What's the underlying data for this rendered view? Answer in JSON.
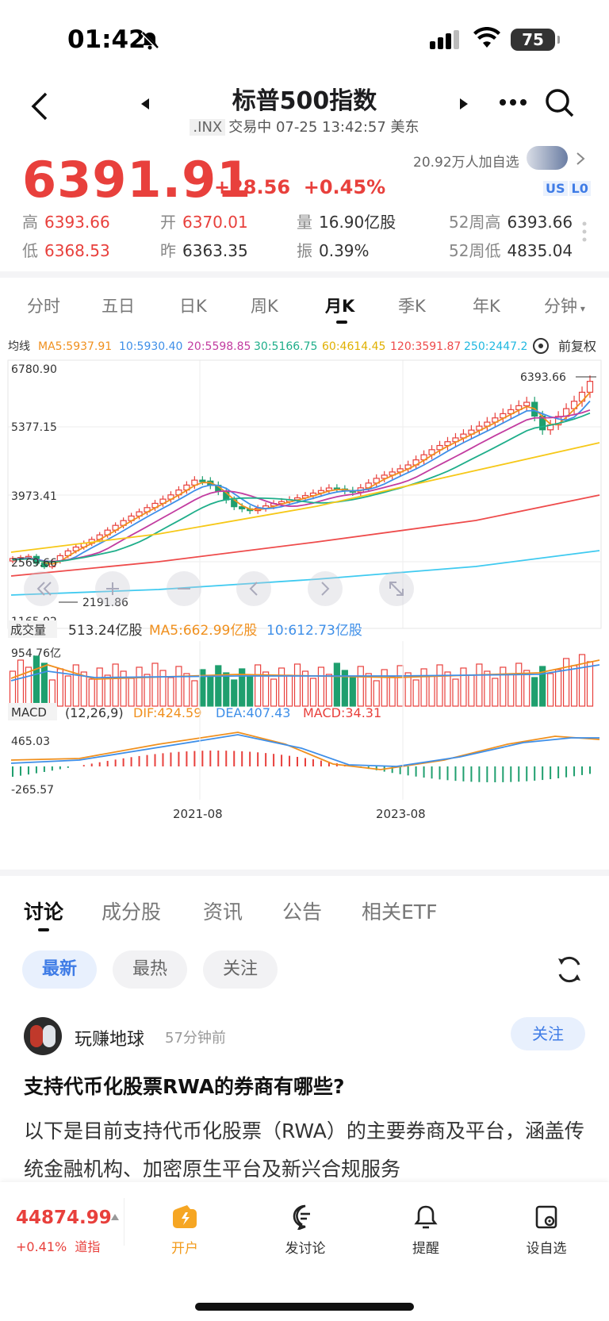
{
  "status": {
    "time": "01:42",
    "battery": "75"
  },
  "header": {
    "title": "标普500指数",
    "code": ".INX",
    "status": "交易中 07-25 13:42:57 美东"
  },
  "quote": {
    "price": "6391.91",
    "change": "+28.56",
    "change_pct": "+0.45%",
    "follows": "20.92万人加自选",
    "badge_us": "US",
    "badge_l0": "L0"
  },
  "stats": [
    {
      "label": "高",
      "value": "6393.66"
    },
    {
      "label": "开",
      "value": "6370.01"
    },
    {
      "label": "量",
      "value": "16.90亿股"
    },
    {
      "label": "52周高",
      "value": "6393.66"
    },
    {
      "label": "低",
      "value": "6368.53"
    },
    {
      "label": "昨",
      "value": "6363.35"
    },
    {
      "label": "振",
      "value": "0.39%"
    },
    {
      "label": "52周低",
      "value": "4835.04"
    }
  ],
  "chart_tabs": [
    "分时",
    "五日",
    "日K",
    "周K",
    "月K",
    "季K",
    "年K",
    "分钟"
  ],
  "active_tab": "月K",
  "ma_legend": {
    "title": "均线",
    "ma5": "MA5:5937.91",
    "ma10": "10:5930.40",
    "ma20": "20:5598.85",
    "ma30": "30:5166.75",
    "ma60": "60:4614.45",
    "ma120": "120:3591.87",
    "ma250": "250:2447.27",
    "adjust": "前复权"
  },
  "vol_legend": {
    "title": "成交量",
    "value": "513.24亿股",
    "ma5": "MA5:662.99亿股",
    "ma10": "10:612.73亿股",
    "max_label": "954.76亿"
  },
  "macd_legend": {
    "title": "MACD",
    "params": "(12,26,9)",
    "dif": "DIF:424.59",
    "dea": "DEA:407.43",
    "macd": "MACD:34.31",
    "top": "465.03",
    "bottom": "-265.57"
  },
  "chart_data": {
    "type": "candlestick",
    "y_ticks": [
      "6780.90",
      "5377.15",
      "3973.41",
      "2569.66",
      "1165.92"
    ],
    "ylim": [
      1165.92,
      6780.9
    ],
    "x_labels": [
      "2021-08",
      "2023-08"
    ],
    "annotations": {
      "high": "6393.66",
      "low": "2191.86"
    },
    "colors": {
      "up": "#e8403c",
      "down": "#1f9f6e",
      "ma5": "#f0901e",
      "ma10": "#3f8fe8",
      "ma20": "#c23ca0",
      "ma30": "#1fae8a",
      "ma60": "#f6c818",
      "ma120": "#ee4b4b",
      "ma250": "#3fcaf0"
    }
  },
  "discuss_tabs": [
    "讨论",
    "成分股",
    "资讯",
    "公告",
    "相关ETF"
  ],
  "filters": [
    "最新",
    "最热",
    "关注"
  ],
  "post": {
    "user": "玩赚地球",
    "time": "57分钟前",
    "follow": "关注",
    "title": "支持代币化股票RWA的券商有哪些?",
    "body": "以下是目前支持代币化股票（RWA）的主要券商及平台，涵盖传统金融机构、加密原生平台及新兴合规服务"
  },
  "bottom": {
    "index_value": "44874.99",
    "index_change": "+0.41%",
    "index_name": "道指",
    "items": [
      "开户",
      "发讨论",
      "提醒",
      "设自选"
    ]
  }
}
